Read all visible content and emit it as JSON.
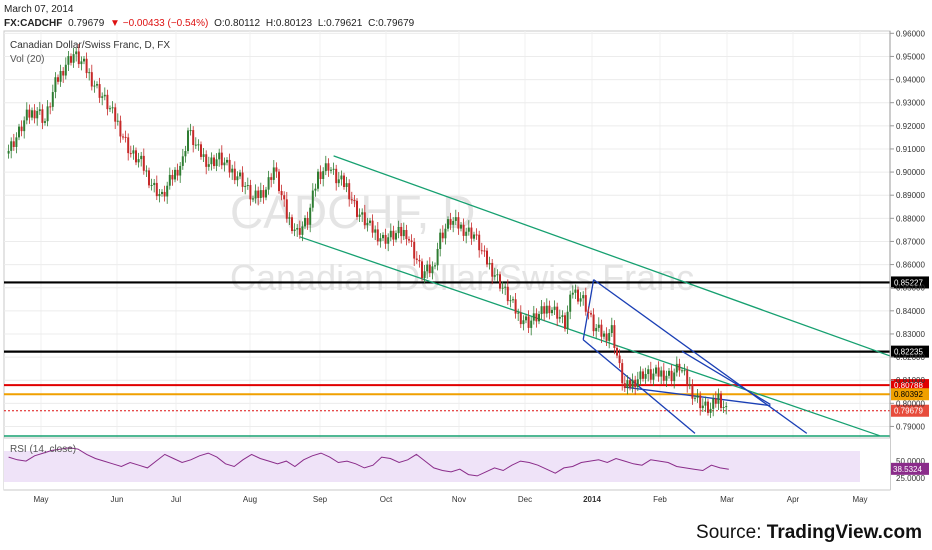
{
  "header": {
    "date": "March 07, 2014",
    "symbol": "FX:CADCHF",
    "last": "0.79679",
    "change": "▼ −0.00433 (−0.54%)",
    "open": "O:0.80112",
    "high": "H:0.80123",
    "low": "L:0.79621",
    "close": "C:0.79679"
  },
  "chart_title": "Canadian Dollar/Swiss Franc, D, FX",
  "volume_label": "Vol (20)",
  "watermark_symbol": "CADCHF, D",
  "watermark_name": "Canadian Dollar/Swiss Franc",
  "rsi_label": "RSI (14, close)",
  "source_label": "Source:",
  "source_brand": "TradingView.com",
  "colors": {
    "candle_up": "#2e7d32",
    "candle_down": "#c62828",
    "channel_green": "#16a070",
    "channel_blue": "#1a3fb5",
    "resistance": "#000000",
    "red_line": "#e00000",
    "orange_line": "#f0a000",
    "rsi_line": "#8a2c8a",
    "rsi_band": "#efe3f8"
  },
  "chart_data": {
    "type": "candlestick",
    "title": "Canadian Dollar/Swiss Franc, D, FX",
    "ylim": [
      0.785,
      0.961
    ],
    "y_ticks": [
      "0.96000",
      "0.95000",
      "0.94000",
      "0.93000",
      "0.92000",
      "0.91000",
      "0.90000",
      "0.89000",
      "0.88000",
      "0.87000",
      "0.86000",
      "0.85000",
      "0.84000",
      "0.83000",
      "0.82000",
      "0.81000",
      "0.80000",
      "0.79000"
    ],
    "x_labels": [
      "May",
      "Jun",
      "Jul",
      "Aug",
      "Sep",
      "Oct",
      "Nov",
      "Dec",
      "2014",
      "Feb",
      "Mar",
      "Apr",
      "May"
    ],
    "close_path": [
      {
        "t": 0,
        "v": 0.908
      },
      {
        "t": 4,
        "v": 0.915
      },
      {
        "t": 8,
        "v": 0.924
      },
      {
        "t": 12,
        "v": 0.927
      },
      {
        "t": 15,
        "v": 0.922
      },
      {
        "t": 19,
        "v": 0.938
      },
      {
        "t": 23,
        "v": 0.947
      },
      {
        "t": 26,
        "v": 0.951
      },
      {
        "t": 30,
        "v": 0.946
      },
      {
        "t": 34,
        "v": 0.938
      },
      {
        "t": 38,
        "v": 0.931
      },
      {
        "t": 43,
        "v": 0.921
      },
      {
        "t": 48,
        "v": 0.908
      },
      {
        "t": 52,
        "v": 0.904
      },
      {
        "t": 56,
        "v": 0.895
      },
      {
        "t": 60,
        "v": 0.889
      },
      {
        "t": 64,
        "v": 0.898
      },
      {
        "t": 68,
        "v": 0.905
      },
      {
        "t": 70,
        "v": 0.918
      },
      {
        "t": 74,
        "v": 0.909
      },
      {
        "t": 78,
        "v": 0.904
      },
      {
        "t": 82,
        "v": 0.906
      },
      {
        "t": 86,
        "v": 0.901
      },
      {
        "t": 90,
        "v": 0.898
      },
      {
        "t": 95,
        "v": 0.888
      },
      {
        "t": 100,
        "v": 0.893
      },
      {
        "t": 103,
        "v": 0.902
      },
      {
        "t": 108,
        "v": 0.881
      },
      {
        "t": 112,
        "v": 0.874
      },
      {
        "t": 116,
        "v": 0.879
      },
      {
        "t": 120,
        "v": 0.899
      },
      {
        "t": 124,
        "v": 0.903
      },
      {
        "t": 127,
        "v": 0.897
      },
      {
        "t": 131,
        "v": 0.894
      },
      {
        "t": 135,
        "v": 0.883
      },
      {
        "t": 140,
        "v": 0.876
      },
      {
        "t": 145,
        "v": 0.871
      },
      {
        "t": 150,
        "v": 0.873
      },
      {
        "t": 154,
        "v": 0.874
      },
      {
        "t": 158,
        "v": 0.862
      },
      {
        "t": 160,
        "v": 0.856
      },
      {
        "t": 164,
        "v": 0.858
      },
      {
        "t": 167,
        "v": 0.872
      },
      {
        "t": 171,
        "v": 0.879
      },
      {
        "t": 175,
        "v": 0.876
      },
      {
        "t": 180,
        "v": 0.873
      },
      {
        "t": 184,
        "v": 0.863
      },
      {
        "t": 188,
        "v": 0.856
      },
      {
        "t": 193,
        "v": 0.846
      },
      {
        "t": 197,
        "v": 0.838
      },
      {
        "t": 201,
        "v": 0.835
      },
      {
        "t": 205,
        "v": 0.838
      },
      {
        "t": 209,
        "v": 0.842
      },
      {
        "t": 212,
        "v": 0.839
      },
      {
        "t": 215,
        "v": 0.834
      },
      {
        "t": 218,
        "v": 0.849
      },
      {
        "t": 222,
        "v": 0.845
      },
      {
        "t": 226,
        "v": 0.833
      },
      {
        "t": 230,
        "v": 0.829
      },
      {
        "t": 233,
        "v": 0.832
      },
      {
        "t": 236,
        "v": 0.815
      },
      {
        "t": 238,
        "v": 0.806
      },
      {
        "t": 241,
        "v": 0.809
      },
      {
        "t": 245,
        "v": 0.813
      },
      {
        "t": 248,
        "v": 0.812
      },
      {
        "t": 252,
        "v": 0.813
      },
      {
        "t": 256,
        "v": 0.812
      },
      {
        "t": 259,
        "v": 0.816
      },
      {
        "t": 262,
        "v": 0.809
      },
      {
        "t": 265,
        "v": 0.803
      },
      {
        "t": 268,
        "v": 0.799
      },
      {
        "t": 271,
        "v": 0.797
      },
      {
        "t": 274,
        "v": 0.803
      },
      {
        "t": 277,
        "v": 0.797
      }
    ],
    "last_value": 0.79679,
    "horizontal_lines": [
      {
        "value": 0.85227,
        "label": "0.85227",
        "color": "#000000"
      },
      {
        "value": 0.82235,
        "label": "0.82235",
        "color": "#000000"
      },
      {
        "value": 0.80788,
        "label": "0.80788",
        "color": "#e00000"
      },
      {
        "value": 0.80392,
        "label": "0.80392",
        "color": "#f0a000"
      }
    ],
    "rsi": {
      "label": "RSI (14, close)",
      "value": "38.5324",
      "ticks": [
        "50.0000",
        "25.0000"
      ],
      "series": [
        56,
        52,
        50,
        58,
        62,
        66,
        68,
        70,
        68,
        60,
        54,
        50,
        46,
        42,
        48,
        44,
        40,
        50,
        60,
        54,
        48,
        52,
        58,
        62,
        56,
        46,
        42,
        52,
        60,
        54,
        50,
        46,
        50,
        42,
        52,
        58,
        62,
        56,
        48,
        50,
        46,
        40,
        44,
        56,
        54,
        48,
        52,
        60,
        50,
        40,
        36,
        34,
        38,
        30,
        28,
        34,
        40,
        36,
        44,
        50,
        48,
        44,
        38,
        32,
        40,
        42,
        48,
        50,
        52,
        48,
        54,
        50,
        46,
        44,
        52,
        50,
        48,
        42,
        40,
        38,
        36,
        44,
        40,
        38
      ]
    }
  }
}
